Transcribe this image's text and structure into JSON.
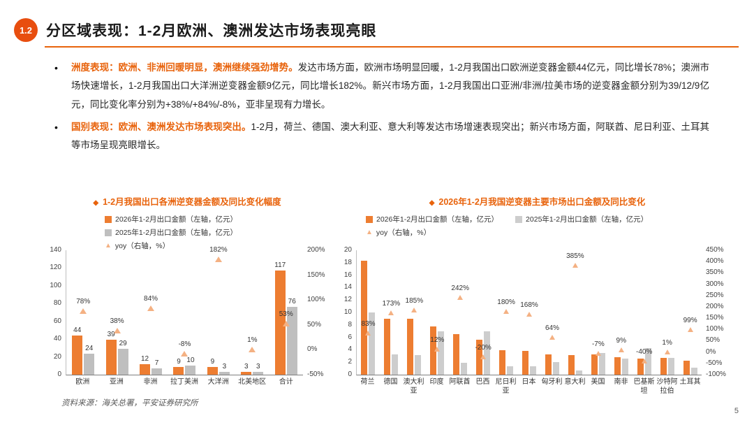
{
  "page": {
    "badge": "1.2",
    "title": "分区域表现：1-2月欧洲、澳洲发达市场表现亮眼",
    "source": "资料来源：海关总署，平安证券研究所",
    "page_number": "5"
  },
  "colors": {
    "brand_orange": "#E8630C",
    "bar_2026": "#ED7D31",
    "bar_2025_left": "#BFBFBF",
    "bar_2025_right": "#CDCDCD",
    "yoy_triangle": "#F4B183"
  },
  "icons": {
    "diamond": "◆",
    "triangle": "▲"
  },
  "bullets": [
    {
      "lead": "洲度表现：欧洲、非洲回暖明显，澳洲继续强劲增势。",
      "rest": "发达市场方面，欧洲市场明显回暖，1-2月我国出口欧洲逆变器金额44亿元，同比增长78%；澳洲市场快速增长，1-2月我国出口大洋洲逆变器金额9亿元，同比增长182%。新兴市场方面，1-2月我国出口亚洲/非洲/拉美市场的逆变器金额分别为39/12/9亿元，同比变化率分别为+38%/+84%/-8%，亚非呈现有力增长。"
    },
    {
      "lead": "国别表现：欧洲、澳洲发达市场表现突出。",
      "rest": "1-2月，荷兰、德国、澳大利亚、意大利等发达市场增速表现突出；新兴市场方面，阿联酋、尼日利亚、土耳其等市场呈现亮眼增长。"
    }
  ],
  "chart_data": [
    {
      "type": "bar",
      "title": "1-2月我国出口各洲逆变器金额及同比变化幅度",
      "categories": [
        "欧洲",
        "亚洲",
        "非洲",
        "拉丁美洲",
        "大洋洲",
        "北美地区",
        "合计"
      ],
      "series": [
        {
          "name": "2026年1-2月出口金额（左轴，亿元）",
          "color": "#ED7D31",
          "values": [
            44,
            39,
            12,
            9,
            9,
            3,
            117
          ]
        },
        {
          "name": "2025年1-2月出口金额（左轴，亿元）",
          "color": "#BFBFBF",
          "values": [
            24,
            29,
            7,
            10,
            3,
            3,
            76
          ]
        }
      ],
      "yoy": {
        "name": "yoy（右轴，%）",
        "values": [
          78,
          38,
          84,
          -8,
          182,
          1,
          53
        ],
        "labels": [
          "78%",
          "38%",
          "84%",
          "-8%",
          "182%",
          "1%",
          "53%"
        ]
      },
      "left_axis": {
        "min": 0,
        "max": 140,
        "step": 20,
        "suffix": ""
      },
      "right_axis": {
        "min": -50,
        "max": 200,
        "step": 50,
        "suffix": "%"
      },
      "grid": false,
      "legend_position": "top-left"
    },
    {
      "type": "bar",
      "title": "2026年1-2月我国逆变器主要市场出口金额及同比变化",
      "categories": [
        "荷兰",
        "德国",
        "澳大利亚",
        "印度",
        "阿联酋",
        "巴西",
        "尼日利亚",
        "日本",
        "匈牙利",
        "意大利",
        "美国",
        "南非",
        "巴基斯坦",
        "沙特阿拉伯",
        "土耳其"
      ],
      "series": [
        {
          "name": "2026年1-2月出口金额（左轴，亿元）",
          "color": "#ED7D31",
          "values": [
            18.3,
            9.0,
            9.0,
            7.8,
            6.5,
            5.6,
            3.9,
            3.8,
            3.3,
            3.2,
            3.3,
            2.8,
            2.6,
            2.7,
            2.2
          ]
        },
        {
          "name": "2025年1-2月出口金额（左轴，亿元）",
          "color": "#CDCDCD",
          "values": [
            10.0,
            3.3,
            3.2,
            7.0,
            1.9,
            7.0,
            1.4,
            1.4,
            2.0,
            0.66,
            3.5,
            2.6,
            4.3,
            2.7,
            1.1
          ]
        }
      ],
      "yoy": {
        "name": "yoy（右轴，%）",
        "values": [
          83,
          173,
          185,
          12,
          242,
          -20,
          180,
          168,
          64,
          385,
          -7,
          9,
          -40,
          1,
          99
        ],
        "labels": [
          "83%",
          "173%",
          "185%",
          "12%",
          "242%",
          "-20%",
          "180%",
          "168%",
          "64%",
          "385%",
          "-7%",
          "9%",
          "-40%",
          "1%",
          "99%"
        ]
      },
      "left_axis": {
        "min": 0,
        "max": 20,
        "step": 2,
        "suffix": ""
      },
      "right_axis": {
        "min": -100,
        "max": 450,
        "step": 50,
        "suffix": "%"
      },
      "grid": false,
      "legend_position": "top-left"
    }
  ]
}
